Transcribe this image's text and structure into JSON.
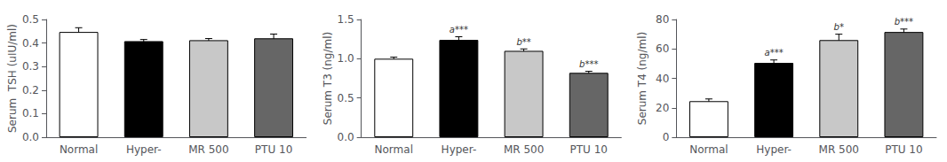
{
  "chart_data": [
    {
      "type": "bar",
      "ylabel": "Serum  TSH (uIU/ml)",
      "categories": [
        "Normal",
        "Hyper-",
        "MR 500",
        "PTU 10"
      ],
      "values": [
        0.447,
        0.408,
        0.412,
        0.42
      ],
      "errors": [
        0.018,
        0.007,
        0.007,
        0.018
      ],
      "colors": [
        "white",
        "black",
        "#c8c8c8",
        "#666666"
      ],
      "ylim": [
        0.0,
        0.5
      ],
      "yticks": [
        {
          "value": 0.0,
          "label": "0.0"
        },
        0.1,
        0.2,
        0.3,
        0.4,
        0.5
      ],
      "grid": false
    },
    {
      "type": "bar",
      "ylabel": "Serum T3 (ng/ml)",
      "categories": [
        "Normal",
        "Hyper-",
        "MR 500",
        "PTU 10"
      ],
      "values": [
        1.0,
        1.24,
        1.1,
        0.82
      ],
      "errors": [
        0.02,
        0.04,
        0.025,
        0.02
      ],
      "annotations": [
        null,
        "a***",
        "b**",
        "b***"
      ],
      "colors": [
        "white",
        "black",
        "#c8c8c8",
        "#666666"
      ],
      "ylim": [
        0.0,
        1.5
      ],
      "yticks": [
        {
          "value": 0.0,
          "label": "0.0"
        },
        0.5,
        {
          "value": 1.0,
          "label": "1.0"
        },
        1.5
      ],
      "grid": false
    },
    {
      "type": "bar",
      "ylabel": "Serum T4 (ng/ml)",
      "categories": [
        "Normal",
        "Hyper-",
        "MR 500",
        "PTU 10"
      ],
      "values": [
        24.5,
        50.5,
        66.0,
        71.5
      ],
      "errors": [
        1.5,
        2.0,
        4.0,
        2.0
      ],
      "annotations": [
        null,
        "a***",
        "b*",
        "b***"
      ],
      "colors": [
        "white",
        "black",
        "#c8c8c8",
        "#666666"
      ],
      "ylim": [
        0,
        80
      ],
      "yticks": [
        0,
        20,
        40,
        60,
        80
      ],
      "grid": false
    }
  ]
}
